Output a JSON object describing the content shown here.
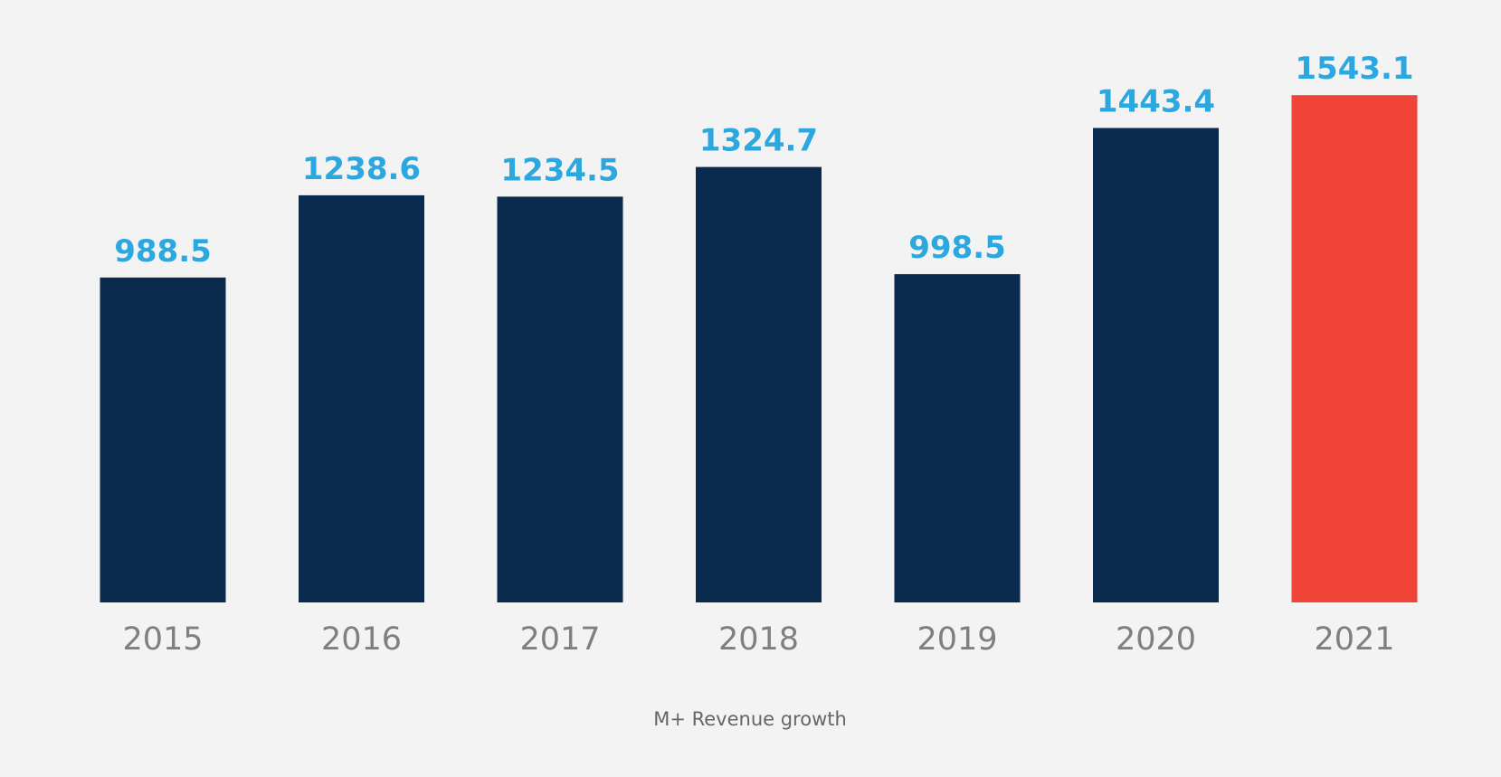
{
  "chart_data": {
    "type": "bar",
    "title": "",
    "xlabel": "",
    "ylabel": "",
    "caption": "M+ Revenue growth",
    "categories": [
      "2015",
      "2016",
      "2017",
      "2018",
      "2019",
      "2020",
      "2021"
    ],
    "values": [
      988.5,
      1238.6,
      1234.5,
      1324.7,
      998.5,
      1443.4,
      1543.1
    ],
    "value_labels": [
      "988.5",
      "1238.6",
      "1234.5",
      "1324.7",
      "998.5",
      "1443.4",
      "1543.1"
    ],
    "highlight_index": 6,
    "grid": false,
    "legend": "none",
    "colors": {
      "bar": "#0a2a4e",
      "highlight": "#f04438",
      "value_label": "#2aa8df",
      "tick_label": "#7f7f7f",
      "caption": "#666666",
      "background": "#f3f3f3"
    }
  }
}
